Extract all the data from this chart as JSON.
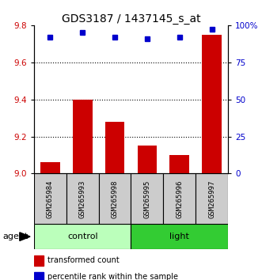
{
  "title": "GDS3187 / 1437145_s_at",
  "samples": [
    "GSM265984",
    "GSM265993",
    "GSM265998",
    "GSM265995",
    "GSM265996",
    "GSM265997"
  ],
  "red_values": [
    9.06,
    9.4,
    9.28,
    9.15,
    9.1,
    9.75
  ],
  "blue_values": [
    92,
    95,
    92,
    91,
    92,
    97
  ],
  "ylim_left": [
    9.0,
    9.8
  ],
  "ylim_right": [
    0,
    100
  ],
  "yticks_left": [
    9.0,
    9.2,
    9.4,
    9.6,
    9.8
  ],
  "yticks_right": [
    0,
    25,
    50,
    75,
    100
  ],
  "ytick_labels_right": [
    "0",
    "25",
    "50",
    "75",
    "100%"
  ],
  "grid_lines": [
    9.2,
    9.4,
    9.6
  ],
  "bar_color": "#cc0000",
  "dot_color": "#0000cc",
  "bar_width": 0.6,
  "bg_color": "#ffffff",
  "label_color_left": "#cc0000",
  "label_color_right": "#0000cc",
  "control_color_light": "#bbffbb",
  "control_color_dark": "#33cc33",
  "sample_box_color": "#cccccc",
  "agent_label": "agent",
  "legend_red": "transformed count",
  "legend_blue": "percentile rank within the sample",
  "tick_label_fontsize": 7.5,
  "sample_label_fontsize": 6.5,
  "title_fontsize": 10,
  "group_label_fontsize": 8
}
